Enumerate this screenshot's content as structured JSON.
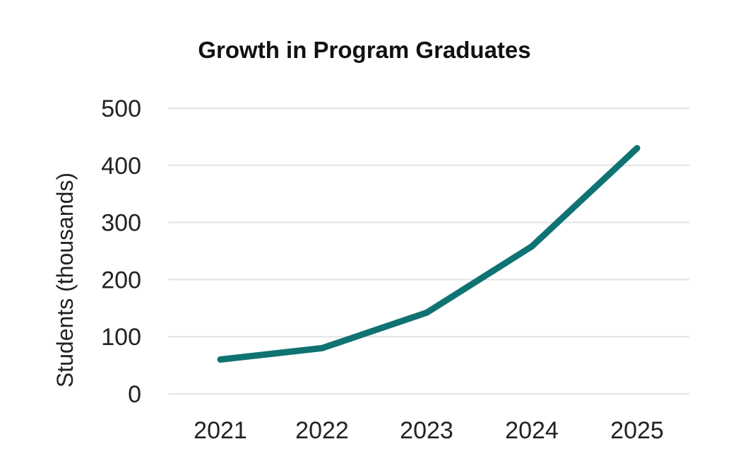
{
  "chart_data": {
    "type": "line",
    "title": "Growth in Program Graduates",
    "xlabel": "",
    "ylabel": "Students (thousands)",
    "categories": [
      "2021",
      "2022",
      "2023",
      "2024",
      "2025"
    ],
    "series": [
      {
        "values": [
          60,
          80,
          142,
          258,
          430
        ]
      }
    ],
    "ylim": [
      0,
      500
    ],
    "yticks": [
      0,
      100,
      200,
      300,
      400,
      500
    ],
    "grid": true,
    "legend": "none",
    "colors": {
      "line": "#0f7373",
      "grid": "#e3e3e3",
      "text": "#222222"
    }
  }
}
